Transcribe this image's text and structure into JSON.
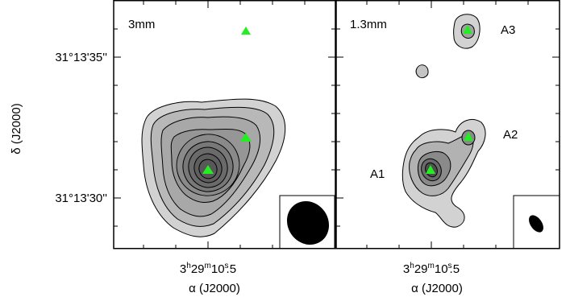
{
  "left_panel": {
    "label": "3mm",
    "markers": [
      "source",
      "source",
      "source"
    ]
  },
  "right_panel": {
    "label": "1.3mm",
    "source_labels": [
      "A1",
      "A2",
      "A3"
    ],
    "markers": [
      "source",
      "source",
      "source"
    ]
  },
  "y_axis": {
    "label": "δ (J2000)",
    "ticks": [
      "31°13'35''",
      "31°13'30''"
    ]
  },
  "x_axis": {
    "label": "α (J2000)",
    "tick_left": {
      "h": "3",
      "m": "29",
      "s": "10",
      "frac": "5"
    },
    "tick_right": {
      "h": "3",
      "m": "29",
      "s": "10",
      "frac": "5"
    }
  },
  "colors": {
    "marker": "#22ee22",
    "contour_light": "#d2d2d2",
    "contour_mid": "#b2b2b2",
    "contour_dark": "#8a8a8a",
    "contour_darkest": "#585858",
    "beam": "#000000"
  }
}
